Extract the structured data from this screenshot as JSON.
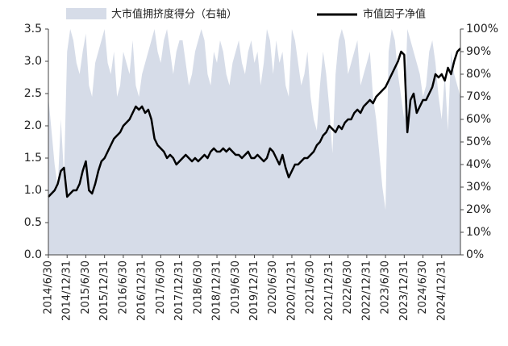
{
  "chart_data": {
    "type": "line",
    "categories": [
      "2014/6/30",
      null,
      null,
      null,
      null,
      null,
      "2014/12/31",
      null,
      null,
      null,
      null,
      null,
      "2015/6/30",
      null,
      null,
      null,
      null,
      null,
      "2015/12/31",
      null,
      null,
      null,
      null,
      null,
      "2016/6/30",
      null,
      null,
      null,
      null,
      null,
      "2016/12/31",
      null,
      null,
      null,
      null,
      null,
      "2017/6/30",
      null,
      null,
      null,
      null,
      null,
      "2017/12/31",
      null,
      null,
      null,
      null,
      null,
      "2018/6/30",
      null,
      null,
      null,
      null,
      null,
      "2018/12/31",
      null,
      null,
      null,
      null,
      null,
      "2019/6/30",
      null,
      null,
      null,
      null,
      null,
      "2019/12/31",
      null,
      null,
      null,
      null,
      null,
      "2020/6/30",
      null,
      null,
      null,
      null,
      null,
      "2020/12/31",
      null,
      null,
      null,
      null,
      null,
      "2021/6/30",
      null,
      null,
      null,
      null,
      null,
      "2021/12/31",
      null,
      null,
      null,
      null,
      null,
      "2022/6/30",
      null,
      null,
      null,
      null,
      null,
      "2022/12/31",
      null,
      null,
      null,
      null,
      null,
      "2023/6/30",
      null,
      null,
      null,
      null,
      null,
      "2023/12/31",
      null,
      null,
      null,
      null,
      null,
      "2024/6/30",
      null,
      null,
      null,
      null,
      null,
      "2024/12/31",
      null,
      null,
      null,
      null,
      null,
      null
    ],
    "series": [
      {
        "name": "大市值拥挤度得分（右轴）",
        "type": "area",
        "axis": "y2",
        "color": "#d6dce8",
        "values": [
          70,
          55,
          40,
          30,
          60,
          35,
          90,
          100,
          95,
          85,
          80,
          90,
          98,
          75,
          70,
          85,
          90,
          95,
          100,
          85,
          80,
          90,
          70,
          75,
          90,
          85,
          80,
          95,
          75,
          70,
          80,
          85,
          90,
          95,
          100,
          90,
          85,
          95,
          100,
          90,
          80,
          90,
          95,
          95,
          85,
          75,
          80,
          90,
          95,
          100,
          95,
          80,
          75,
          90,
          85,
          95,
          90,
          80,
          75,
          85,
          90,
          95,
          85,
          80,
          90,
          95,
          85,
          90,
          75,
          85,
          100,
          95,
          80,
          95,
          85,
          90,
          75,
          70,
          100,
          95,
          85,
          75,
          80,
          90,
          70,
          60,
          55,
          75,
          90,
          80,
          65,
          45,
          80,
          95,
          100,
          95,
          80,
          85,
          90,
          95,
          75,
          80,
          85,
          90,
          70,
          60,
          45,
          30,
          20,
          90,
          100,
          95,
          80,
          70,
          60,
          100,
          95,
          90,
          85,
          80,
          70,
          75,
          90,
          95,
          85,
          70,
          60,
          80,
          55,
          90,
          80,
          75,
          70
        ]
      },
      {
        "name": "市值因子净值",
        "type": "line",
        "color": "#000000",
        "values": [
          0.9,
          0.95,
          1.0,
          1.1,
          1.3,
          1.35,
          0.9,
          0.95,
          1.0,
          1.0,
          1.1,
          1.3,
          1.45,
          1.0,
          0.95,
          1.1,
          1.3,
          1.45,
          1.5,
          1.6,
          1.7,
          1.8,
          1.85,
          1.9,
          2.0,
          2.05,
          2.1,
          2.2,
          2.3,
          2.25,
          2.3,
          2.2,
          2.25,
          2.1,
          1.8,
          1.7,
          1.65,
          1.6,
          1.5,
          1.55,
          1.5,
          1.4,
          1.45,
          1.5,
          1.55,
          1.5,
          1.45,
          1.5,
          1.45,
          1.5,
          1.55,
          1.5,
          1.6,
          1.65,
          1.6,
          1.6,
          1.65,
          1.6,
          1.65,
          1.6,
          1.55,
          1.55,
          1.5,
          1.55,
          1.6,
          1.5,
          1.5,
          1.55,
          1.5,
          1.45,
          1.5,
          1.65,
          1.6,
          1.5,
          1.4,
          1.55,
          1.35,
          1.2,
          1.3,
          1.4,
          1.4,
          1.45,
          1.5,
          1.5,
          1.55,
          1.6,
          1.7,
          1.75,
          1.85,
          1.9,
          2.0,
          1.95,
          1.9,
          2.0,
          1.95,
          2.05,
          2.1,
          2.1,
          2.2,
          2.25,
          2.2,
          2.3,
          2.35,
          2.4,
          2.35,
          2.45,
          2.5,
          2.55,
          2.6,
          2.7,
          2.8,
          2.9,
          3.0,
          3.15,
          3.1,
          1.9,
          2.4,
          2.5,
          2.2,
          2.3,
          2.4,
          2.4,
          2.5,
          2.6,
          2.8,
          2.75,
          2.8,
          2.7,
          2.9,
          2.8,
          3.0,
          3.15,
          3.2
        ]
      }
    ],
    "ylim": [
      0,
      3.5
    ],
    "yticks": [
      {
        "value": 0,
        "label": "0.0"
      },
      0.5,
      {
        "value": 1,
        "label": "1.0"
      },
      1.5,
      {
        "value": 2,
        "label": "2.0"
      },
      2.5,
      {
        "value": 3,
        "label": "3.0"
      },
      3.5
    ],
    "y2lim": [
      0,
      100
    ],
    "y2ticks": [
      {
        "value": 0,
        "label": "0%"
      },
      {
        "value": 10,
        "label": "10%"
      },
      {
        "value": 20,
        "label": "20%"
      },
      {
        "value": 30,
        "label": "30%"
      },
      {
        "value": 40,
        "label": "40%"
      },
      {
        "value": 50,
        "label": "50%"
      },
      {
        "value": 60,
        "label": "60%"
      },
      {
        "value": 70,
        "label": "70%"
      },
      {
        "value": 80,
        "label": "80%"
      },
      {
        "value": 90,
        "label": "90%"
      },
      {
        "value": 100,
        "label": "100%"
      }
    ]
  }
}
